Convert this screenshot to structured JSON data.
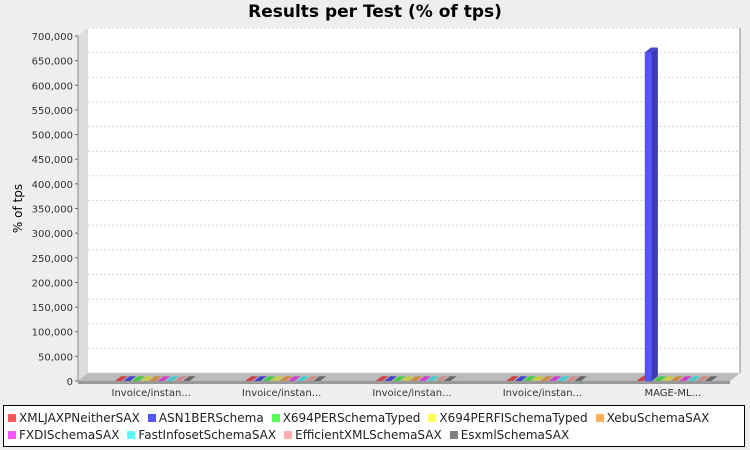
{
  "chart_data": {
    "type": "bar",
    "style": "3d-grouped",
    "title": "Results per Test (% of tps)",
    "xlabel": "",
    "ylabel": "% of tps",
    "ylim": [
      0,
      700000
    ],
    "yticks": [
      "0",
      "50,000",
      "100,000",
      "150,000",
      "200,000",
      "250,000",
      "300,000",
      "350,000",
      "400,000",
      "450,000",
      "500,000",
      "550,000",
      "600,000",
      "650,000",
      "700,000"
    ],
    "categories": [
      "Invoice/instan...",
      "Invoice/instan...",
      "Invoice/instan...",
      "Invoice/instan...",
      "MAGE-ML..."
    ],
    "grid": true,
    "legend_placement": "bottom",
    "series": [
      {
        "name": "XMLJAXPNeitherSAX",
        "color": "#ff5555",
        "values": [
          0,
          0,
          0,
          0,
          0
        ]
      },
      {
        "name": "ASN1BERSchema",
        "color": "#5555ff",
        "values": [
          0,
          0,
          0,
          0,
          667000
        ]
      },
      {
        "name": "X694PERSchemaTyped",
        "color": "#55ff55",
        "values": [
          0,
          0,
          0,
          0,
          0
        ]
      },
      {
        "name": "X694PERFISchemaTyped",
        "color": "#ffff55",
        "values": [
          0,
          0,
          0,
          0,
          0
        ]
      },
      {
        "name": "XebuSchemaSAX",
        "color": "#ffaf55",
        "values": [
          0,
          0,
          0,
          0,
          0
        ]
      },
      {
        "name": "FXDISchemaSAX",
        "color": "#ff55ff",
        "values": [
          0,
          0,
          0,
          0,
          0
        ]
      },
      {
        "name": "FastInfosetSchemaSAX",
        "color": "#55ffff",
        "values": [
          0,
          0,
          0,
          0,
          0
        ]
      },
      {
        "name": "EfficientXMLSchemaSAX",
        "color": "#ffafaf",
        "values": [
          0,
          0,
          0,
          0,
          0
        ]
      },
      {
        "name": "EsxmlSchemaSAX",
        "color": "#808080",
        "values": [
          0,
          0,
          0,
          0,
          0
        ]
      }
    ]
  }
}
